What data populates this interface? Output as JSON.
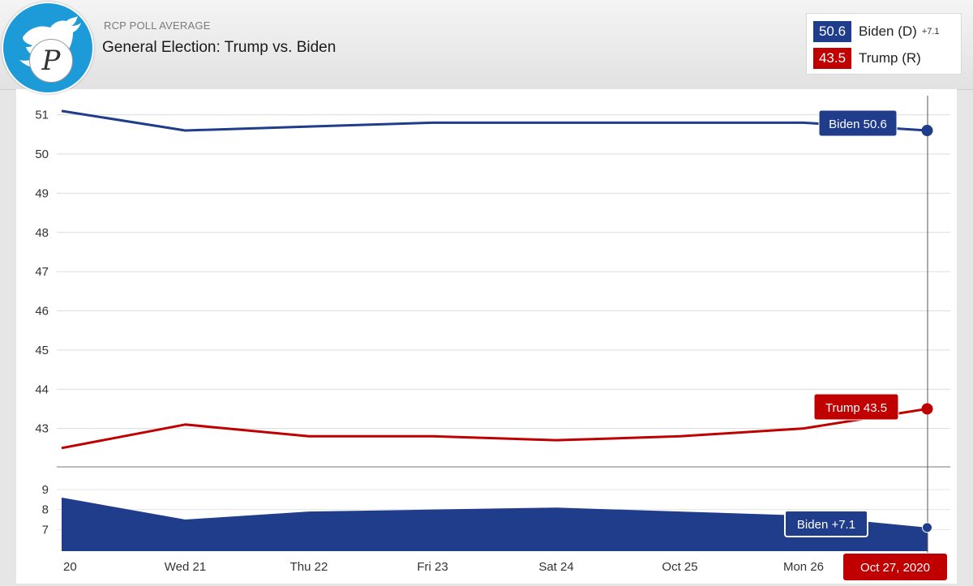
{
  "header": {
    "overline": "RCP POLL AVERAGE",
    "title": "General Election: Trump vs. Biden"
  },
  "logo": {
    "icon": "twitter-bird-icon",
    "letter": "P"
  },
  "legend": [
    {
      "value": "50.6",
      "name": "Biden (D)",
      "spread": "+7.1",
      "color": "#1f3d8a"
    },
    {
      "value": "43.5",
      "name": "Trump (R)",
      "spread": "",
      "color": "#c00000"
    }
  ],
  "callouts": {
    "biden": "Biden 50.6",
    "trump": "Trump 43.5",
    "spread": "Biden +7.1",
    "date": "Oct 27, 2020"
  },
  "chart_data": [
    {
      "type": "line",
      "x": [
        "20",
        "Wed 21",
        "Thu 22",
        "Fri 23",
        "Sat 24",
        "Oct 25",
        "Mon 26",
        "Oct 27, 2020"
      ],
      "series": [
        {
          "name": "Biden",
          "color": "#1f3d8a",
          "values": [
            51.1,
            50.6,
            50.7,
            50.8,
            50.8,
            50.8,
            50.8,
            50.6
          ]
        },
        {
          "name": "Trump",
          "color": "#c00000",
          "values": [
            42.5,
            43.1,
            42.8,
            42.8,
            42.7,
            42.8,
            43.0,
            43.5
          ]
        }
      ],
      "ylim": [
        42,
        51.2
      ],
      "yticks": [
        43,
        44,
        45,
        46,
        47,
        48,
        49,
        50,
        51
      ],
      "grid": true
    },
    {
      "type": "area",
      "x": [
        "20",
        "Wed 21",
        "Thu 22",
        "Fri 23",
        "Sat 24",
        "Oct 25",
        "Mon 26",
        "Oct 27, 2020"
      ],
      "series": [
        {
          "name": "Biden",
          "color": "#1f3d8a",
          "values": [
            8.6,
            7.5,
            7.9,
            8.0,
            8.1,
            7.9,
            7.7,
            7.1
          ]
        }
      ],
      "ylim": [
        6.0,
        9.0
      ],
      "yticks": [
        7,
        8,
        9
      ],
      "grid": true
    }
  ]
}
